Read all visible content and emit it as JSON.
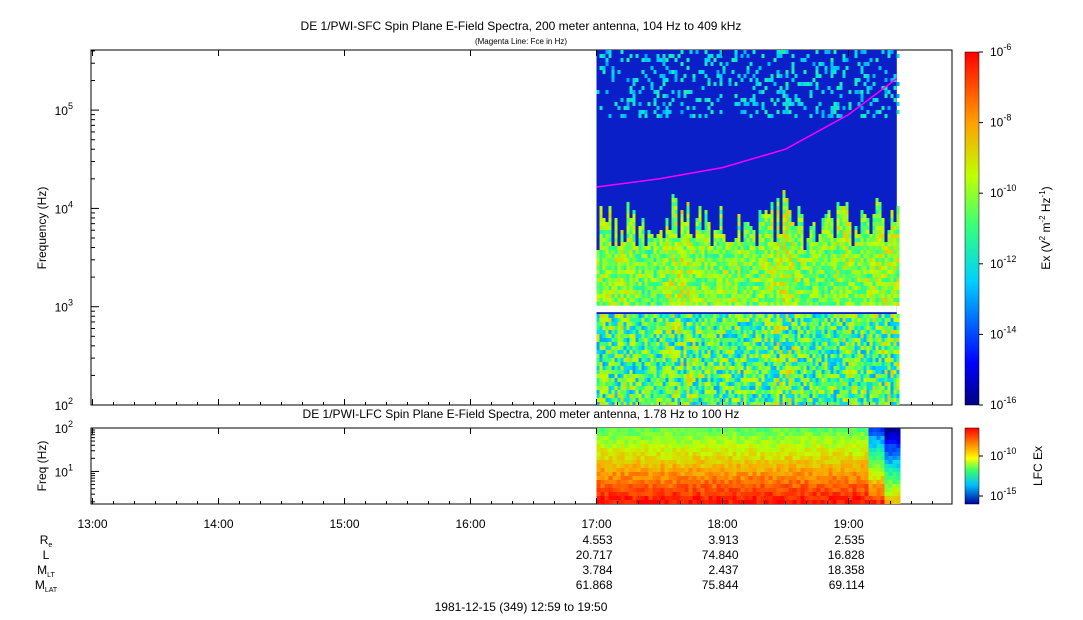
{
  "chart_data": [
    {
      "type": "heatmap",
      "title": "DE 1/PWI-SFC  Spin Plane E-Field Spectra, 200 meter antenna, 104 Hz to 409 kHz",
      "subtitle": "(Magenta Line: Fce in Hz)",
      "ylabel": "Frequency (Hz)",
      "ylim": [
        100,
        409000
      ],
      "yscale": "log",
      "y_ticks": [
        {
          "base": "10",
          "exp": "2"
        },
        {
          "base": "10",
          "exp": "3"
        },
        {
          "base": "10",
          "exp": "4"
        },
        {
          "base": "10",
          "exp": "5"
        }
      ],
      "colorbar": {
        "label_parts": {
          "a": "Ex (V",
          "b": "2",
          "c": " m",
          "d": "-2",
          "e": " Hz",
          "f": "-1",
          "g": ")"
        },
        "range_exp": [
          -16,
          -6
        ],
        "ticks": [
          {
            "base": "10",
            "exp": "-6"
          },
          {
            "base": "10",
            "exp": "-8"
          },
          {
            "base": "10",
            "exp": "-10"
          },
          {
            "base": "10",
            "exp": "-12"
          },
          {
            "base": "10",
            "exp": "-14"
          },
          {
            "base": "10",
            "exp": "-16"
          }
        ]
      },
      "data_start": "17:00",
      "data_end": "19:23",
      "fce_line": {
        "name": "Fce",
        "color": "#ff00ff",
        "points": [
          {
            "t": "17:00",
            "f": 16500
          },
          {
            "t": "17:30",
            "f": 20000
          },
          {
            "t": "18:00",
            "f": 26000
          },
          {
            "t": "18:30",
            "f": 40000
          },
          {
            "t": "19:00",
            "f": 90000
          },
          {
            "t": "19:23",
            "f": 210000
          }
        ]
      }
    },
    {
      "type": "heatmap",
      "title": "DE 1/PWI-LFC  Spin Plane E-Field Spectra, 200 meter antenna, 1.78 Hz to 100 Hz",
      "ylabel": "Freq (Hz)",
      "ylim": [
        1.78,
        100
      ],
      "yscale": "log",
      "y_ticks": [
        {
          "base": "10",
          "exp": "1"
        },
        {
          "base": "10",
          "exp": "2"
        }
      ],
      "colorbar": {
        "label": "LFC Ex",
        "ticks": [
          {
            "base": "10",
            "exp": "-10"
          },
          {
            "base": "10",
            "exp": "-15"
          }
        ]
      },
      "data_start": "17:00",
      "data_end": "19:23"
    }
  ],
  "x_axis": {
    "ticks": [
      "13:00",
      "14:00",
      "15:00",
      "16:00",
      "17:00",
      "18:00",
      "19:00"
    ],
    "range": [
      "12:59",
      "19:50"
    ]
  },
  "ephemeris": {
    "rows": [
      {
        "label": "R",
        "sub": "e",
        "values": [
          "4.553",
          "3.913",
          "2.535"
        ]
      },
      {
        "label": "L",
        "sub": "",
        "values": [
          "20.717",
          "74.840",
          "16.828"
        ]
      },
      {
        "label": "M",
        "sub": "LT",
        "values": [
          "3.784",
          "2.437",
          "18.358"
        ]
      },
      {
        "label": "M",
        "sub": "LAT",
        "values": [
          "61.868",
          "75.844",
          "69.114"
        ]
      }
    ],
    "times": [
      "17:00",
      "18:00",
      "19:00"
    ]
  },
  "footer": "1981-12-15 (349) 12:59 to 19:50",
  "colors": {
    "fce_line": "#ff00ff",
    "background_spectra": "#0a1fc8"
  }
}
